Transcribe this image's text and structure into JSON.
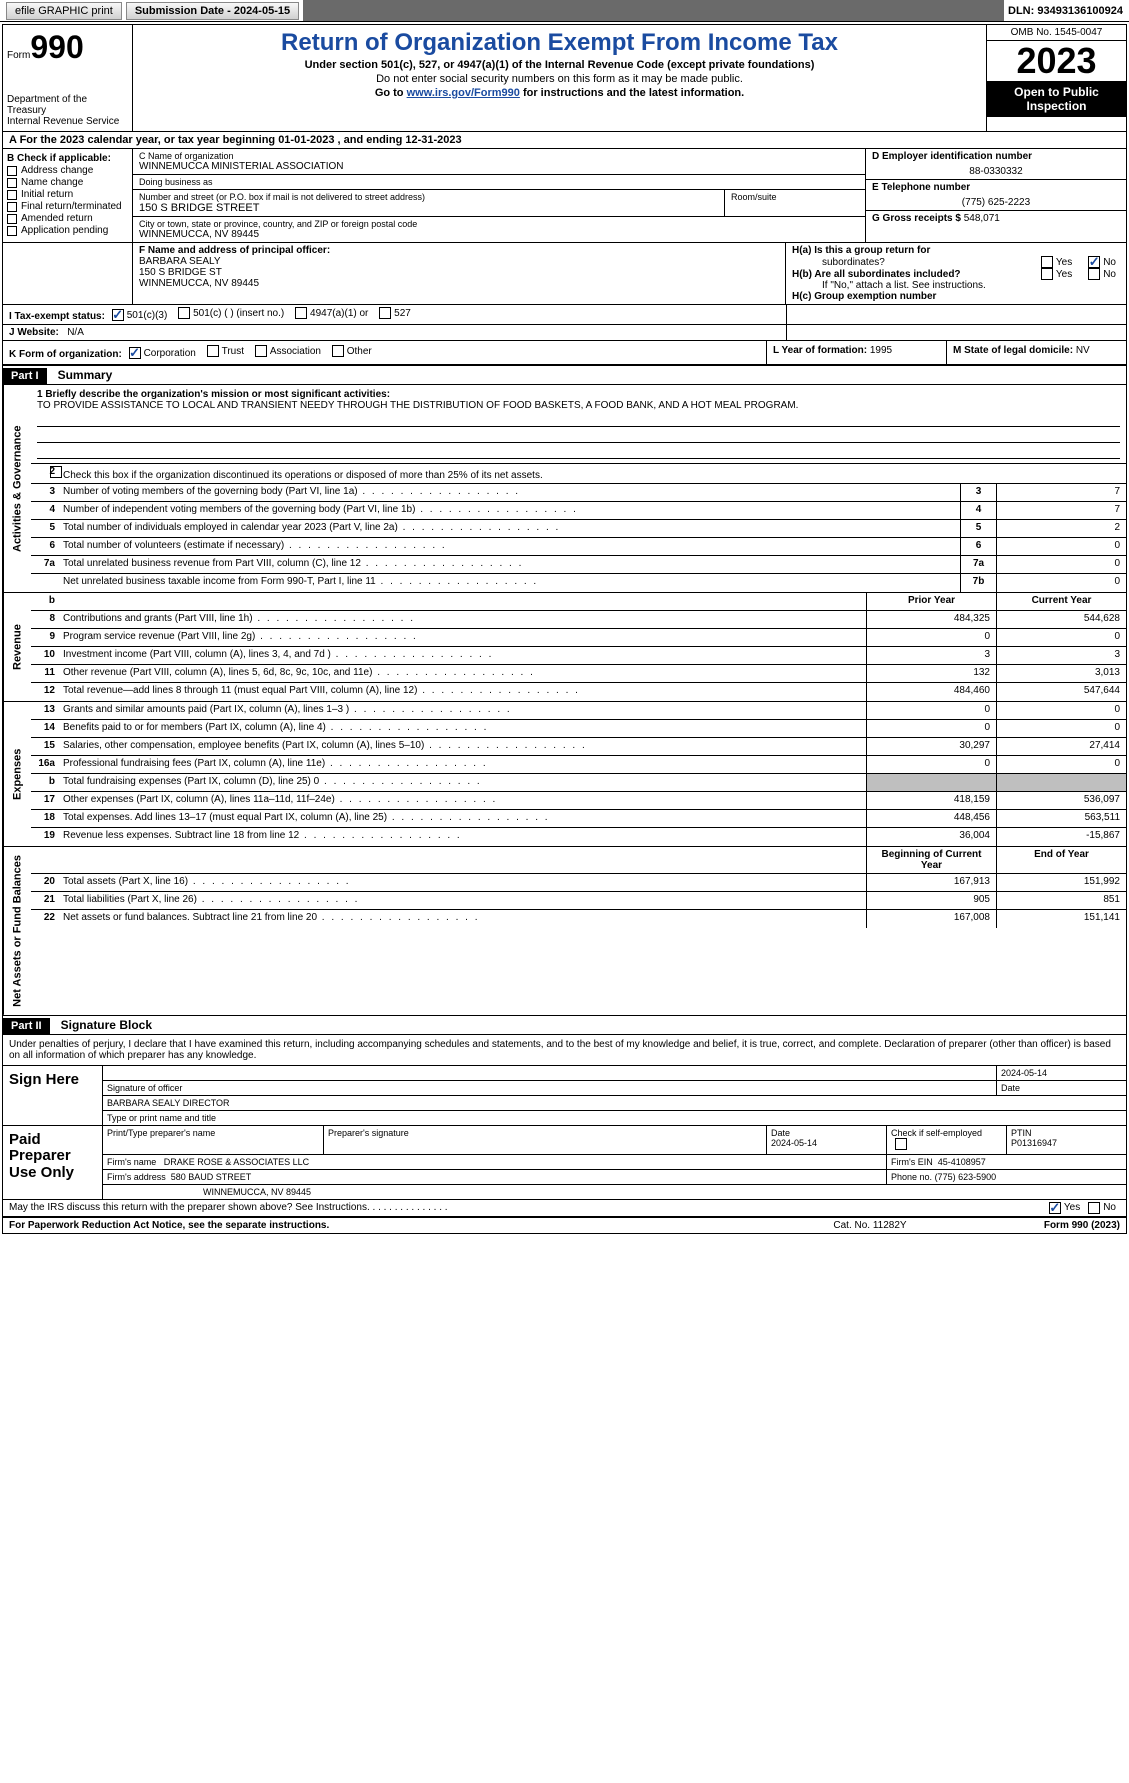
{
  "topbar": {
    "efile": "efile GRAPHIC print",
    "sub_label": "Submission Date - 2024-05-15",
    "dln": "DLN: 93493136100924"
  },
  "header": {
    "form_word": "Form",
    "form_no": "990",
    "dept": "Department of the Treasury",
    "irs": "Internal Revenue Service",
    "title": "Return of Organization Exempt From Income Tax",
    "sub1": "Under section 501(c), 527, or 4947(a)(1) of the Internal Revenue Code (except private foundations)",
    "sub2": "Do not enter social security numbers on this form as it may be made public.",
    "sub3_pre": "Go to ",
    "sub3_link": "www.irs.gov/Form990",
    "sub3_post": " for instructions and the latest information.",
    "omb": "OMB No. 1545-0047",
    "year": "2023",
    "open": "Open to Public Inspection"
  },
  "row_a": "A   For the 2023 calendar year, or tax year beginning 01-01-2023    , and ending 12-31-2023",
  "sec_b": {
    "label": "B Check if applicable:",
    "addr": "Address change",
    "name": "Name change",
    "init": "Initial return",
    "final": "Final return/terminated",
    "amend": "Amended return",
    "app": "Application pending"
  },
  "sec_c": {
    "name_lbl": "C Name of organization",
    "name": "WINNEMUCCA MINISTERIAL ASSOCIATION",
    "dba_lbl": "Doing business as",
    "dba": "",
    "street_lbl": "Number and street (or P.O. box if mail is not delivered to street address)",
    "street": "150 S BRIDGE STREET",
    "room_lbl": "Room/suite",
    "room": "",
    "city_lbl": "City or town, state or province, country, and ZIP or foreign postal code",
    "city": "WINNEMUCCA, NV  89445"
  },
  "sec_de": {
    "ein_lbl": "D Employer identification number",
    "ein": "88-0330332",
    "tel_lbl": "E Telephone number",
    "tel": "(775) 625-2223",
    "gross_lbl": "G Gross receipts $",
    "gross": "548,071"
  },
  "sec_f": {
    "lbl": "F  Name and address of principal officer:",
    "name": "BARBARA SEALY",
    "street": "150 S BRIDGE ST",
    "city": "WINNEMUCCA, NV  89445"
  },
  "sec_h": {
    "ha": "H(a)  Is this a group return for",
    "ha2": "subordinates?",
    "hb": "H(b)  Are all subordinates included?",
    "hb_note": "If \"No,\" attach a list. See instructions.",
    "hc": "H(c)  Group exemption number",
    "yes": "Yes",
    "no": "No"
  },
  "sec_i": {
    "lbl": "I    Tax-exempt status:",
    "c3": "501(c)(3)",
    "c": "501(c) (  ) (insert no.)",
    "a1": "4947(a)(1) or",
    "s527": "527"
  },
  "sec_j": {
    "lbl": "J    Website:",
    "val": "N/A"
  },
  "sec_k": {
    "lbl": "K Form of organization:",
    "corp": "Corporation",
    "trust": "Trust",
    "assoc": "Association",
    "other": "Other"
  },
  "sec_l": {
    "lbl": "L Year of formation:",
    "val": "1995"
  },
  "sec_m": {
    "lbl": "M State of legal domicile:",
    "val": "NV"
  },
  "part1": {
    "hdr": "Part I",
    "title": "Summary"
  },
  "sidebars": {
    "act": "Activities & Governance",
    "rev": "Revenue",
    "exp": "Expenses",
    "net": "Net Assets or Fund Balances"
  },
  "mission": {
    "lbl": "1   Briefly describe the organization's mission or most significant activities:",
    "text": "TO PROVIDE ASSISTANCE TO LOCAL AND TRANSIENT NEEDY THROUGH THE DISTRIBUTION OF FOOD BASKETS, A FOOD BANK, AND A HOT MEAL PROGRAM."
  },
  "line2": "Check this box         if the organization discontinued its operations or disposed of more than 25% of its net assets.",
  "lines_gov": [
    {
      "n": "3",
      "d": "Number of voting members of the governing body (Part VI, line 1a)",
      "c": "3",
      "v": "7"
    },
    {
      "n": "4",
      "d": "Number of independent voting members of the governing body (Part VI, line 1b)",
      "c": "4",
      "v": "7"
    },
    {
      "n": "5",
      "d": "Total number of individuals employed in calendar year 2023 (Part V, line 2a)",
      "c": "5",
      "v": "2"
    },
    {
      "n": "6",
      "d": "Total number of volunteers (estimate if necessary)",
      "c": "6",
      "v": "0"
    },
    {
      "n": "7a",
      "d": "Total unrelated business revenue from Part VIII, column (C), line 12",
      "c": "7a",
      "v": "0"
    },
    {
      "n": "",
      "d": "Net unrelated business taxable income from Form 990-T, Part I, line 11",
      "c": "7b",
      "v": "0"
    }
  ],
  "rev_hdr": {
    "b": "b",
    "py": "Prior Year",
    "cy": "Current Year"
  },
  "lines_rev": [
    {
      "n": "8",
      "d": "Contributions and grants (Part VIII, line 1h)",
      "py": "484,325",
      "cy": "544,628"
    },
    {
      "n": "9",
      "d": "Program service revenue (Part VIII, line 2g)",
      "py": "0",
      "cy": "0"
    },
    {
      "n": "10",
      "d": "Investment income (Part VIII, column (A), lines 3, 4, and 7d )",
      "py": "3",
      "cy": "3"
    },
    {
      "n": "11",
      "d": "Other revenue (Part VIII, column (A), lines 5, 6d, 8c, 9c, 10c, and 11e)",
      "py": "132",
      "cy": "3,013"
    },
    {
      "n": "12",
      "d": "Total revenue—add lines 8 through 11 (must equal Part VIII, column (A), line 12)",
      "py": "484,460",
      "cy": "547,644"
    }
  ],
  "lines_exp": [
    {
      "n": "13",
      "d": "Grants and similar amounts paid (Part IX, column (A), lines 1–3 )",
      "py": "0",
      "cy": "0"
    },
    {
      "n": "14",
      "d": "Benefits paid to or for members (Part IX, column (A), line 4)",
      "py": "0",
      "cy": "0"
    },
    {
      "n": "15",
      "d": "Salaries, other compensation, employee benefits (Part IX, column (A), lines 5–10)",
      "py": "30,297",
      "cy": "27,414"
    },
    {
      "n": "16a",
      "d": "Professional fundraising fees (Part IX, column (A), line 11e)",
      "py": "0",
      "cy": "0"
    },
    {
      "n": "b",
      "d": "Total fundraising expenses (Part IX, column (D), line 25) 0",
      "py": "",
      "cy": "",
      "shade": true
    },
    {
      "n": "17",
      "d": "Other expenses (Part IX, column (A), lines 11a–11d, 11f–24e)",
      "py": "418,159",
      "cy": "536,097"
    },
    {
      "n": "18",
      "d": "Total expenses. Add lines 13–17 (must equal Part IX, column (A), line 25)",
      "py": "448,456",
      "cy": "563,511"
    },
    {
      "n": "19",
      "d": "Revenue less expenses. Subtract line 18 from line 12",
      "py": "36,004",
      "cy": "-15,867"
    }
  ],
  "net_hdr": {
    "py": "Beginning of Current Year",
    "cy": "End of Year"
  },
  "lines_net": [
    {
      "n": "20",
      "d": "Total assets (Part X, line 16)",
      "py": "167,913",
      "cy": "151,992"
    },
    {
      "n": "21",
      "d": "Total liabilities (Part X, line 26)",
      "py": "905",
      "cy": "851"
    },
    {
      "n": "22",
      "d": "Net assets or fund balances. Subtract line 21 from line 20",
      "py": "167,008",
      "cy": "151,141"
    }
  ],
  "part2": {
    "hdr": "Part II",
    "title": "Signature Block"
  },
  "sig_intro": "Under penalties of perjury, I declare that I have examined this return, including accompanying schedules and statements, and to the best of my knowledge and belief, it is true, correct, and complete. Declaration of preparer (other than officer) is based on all information of which preparer has any knowledge.",
  "sign": {
    "lbl": "Sign Here",
    "date": "2024-05-14",
    "sig_lbl": "Signature of officer",
    "name": "BARBARA SEALY  DIRECTOR",
    "name_lbl": "Type or print name and title",
    "date_lbl": "Date"
  },
  "prep": {
    "lbl": "Paid Preparer Use Only",
    "r1c1": "Print/Type preparer's name",
    "r1c2": "Preparer's signature",
    "r1c3_lbl": "Date",
    "r1c3": "2024-05-14",
    "r1c4_lbl": "Check          if self-employed",
    "r1c5_lbl": "PTIN",
    "r1c5": "P01316947",
    "r2_lbl": "Firm's name",
    "r2_val": "DRAKE ROSE & ASSOCIATES LLC",
    "r2_ein_lbl": "Firm's EIN",
    "r2_ein": "45-4108957",
    "r3_lbl": "Firm's address",
    "r3_val": "580 BAUD STREET",
    "r3_city": "WINNEMUCCA, NV  89445",
    "r3_ph_lbl": "Phone no.",
    "r3_ph": "(775) 623-5900"
  },
  "discuss": {
    "txt": "May the IRS discuss this return with the preparer shown above? See Instructions.",
    "yes": "Yes",
    "no": "No"
  },
  "footer": {
    "l": "For Paperwork Reduction Act Notice, see the separate instructions.",
    "c": "Cat. No. 11282Y",
    "r": "Form 990 (2023)"
  }
}
